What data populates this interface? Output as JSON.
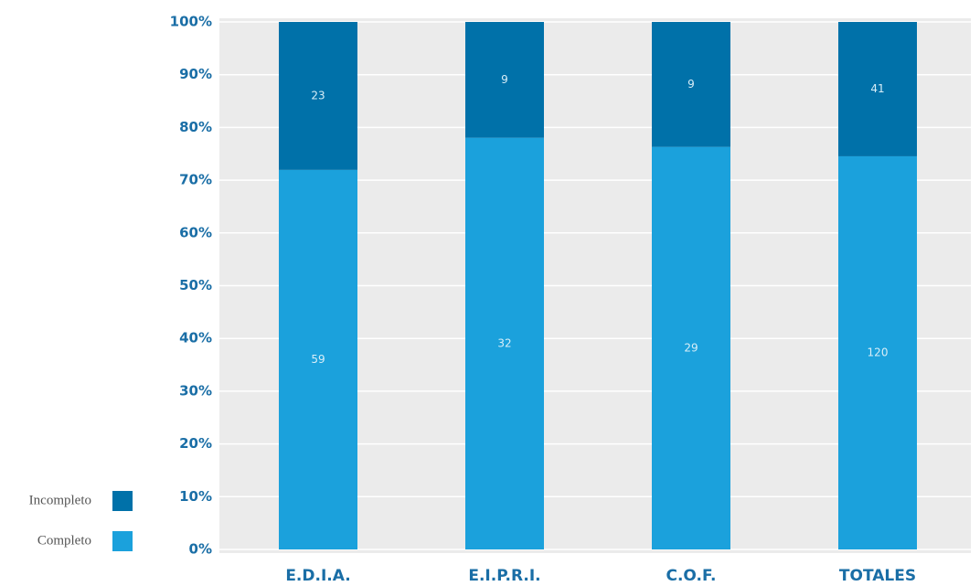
{
  "chart_data": {
    "type": "bar",
    "stack": "percent",
    "categories": [
      "E.D.I.A.",
      "E.I.P.R.I.",
      "C.O.F.",
      "TOTALES"
    ],
    "series": [
      {
        "name": "Completo",
        "color": "#1ba1dc",
        "values": [
          59,
          32,
          29,
          120
        ]
      },
      {
        "name": "Incompleto",
        "color": "#0071a9",
        "values": [
          23,
          9,
          9,
          41
        ]
      }
    ],
    "ylim": [
      0,
      100
    ],
    "yticks": [
      {
        "value": 0,
        "label": "0%"
      },
      {
        "value": 10,
        "label": "10%"
      },
      {
        "value": 20,
        "label": "20%"
      },
      {
        "value": 30,
        "label": "30%"
      },
      {
        "value": 40,
        "label": "40%"
      },
      {
        "value": 50,
        "label": "50%"
      },
      {
        "value": 60,
        "label": "60%"
      },
      {
        "value": 70,
        "label": "70%"
      },
      {
        "value": 80,
        "label": "80%"
      },
      {
        "value": 90,
        "label": "90%"
      },
      {
        "value": 100,
        "label": "100%"
      }
    ],
    "grid": true
  }
}
